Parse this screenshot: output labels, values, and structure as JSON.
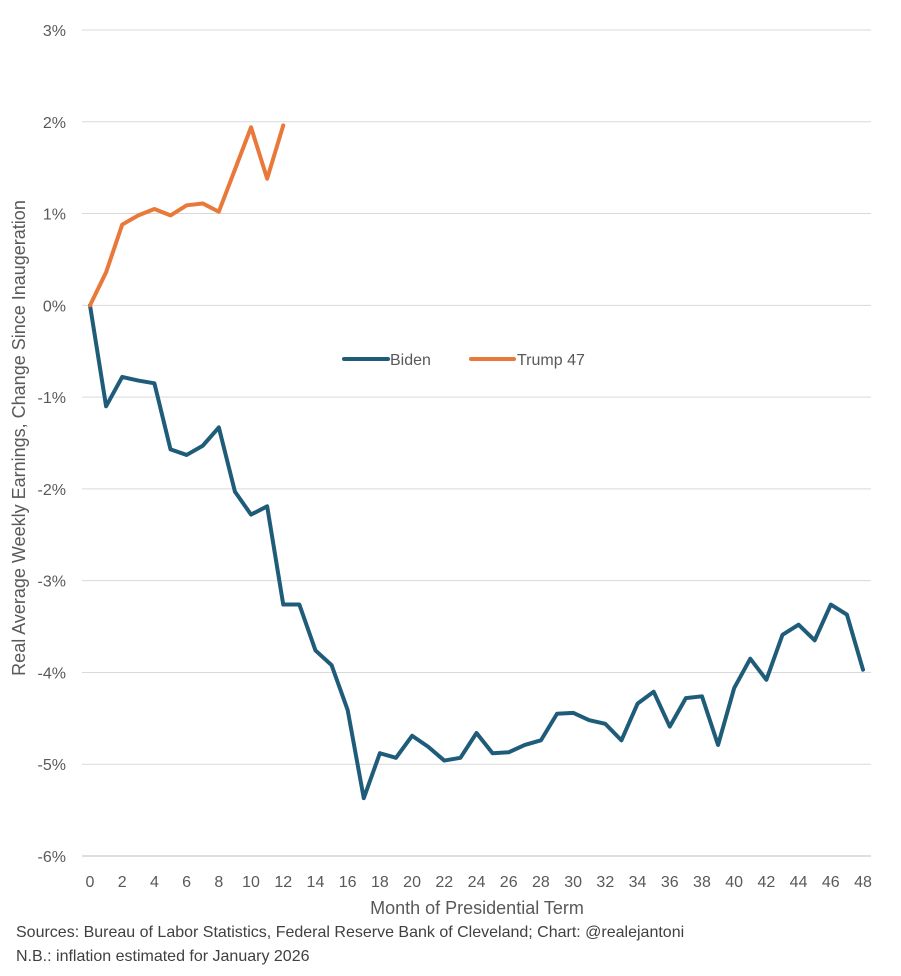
{
  "chart_data": {
    "type": "line",
    "title": "",
    "xlabel": "Month of Presidential Term",
    "ylabel": "Real Average Weekly Earnings, Change Since Inaugeration",
    "xlim": [
      0,
      48
    ],
    "ylim": [
      -6,
      3
    ],
    "x_ticks": [
      0,
      2,
      4,
      6,
      8,
      10,
      12,
      14,
      16,
      18,
      20,
      22,
      24,
      26,
      28,
      30,
      32,
      34,
      36,
      38,
      40,
      42,
      44,
      46,
      48
    ],
    "y_ticks": [
      3,
      2,
      1,
      0,
      -1,
      -2,
      -3,
      -4,
      -5,
      -6
    ],
    "y_tick_labels": [
      "3%",
      "2%",
      "1%",
      "0%",
      "-1%",
      "-2%",
      "-3%",
      "-4%",
      "-5%",
      "-6%"
    ],
    "grid": "horizontal",
    "legend": "center",
    "series": [
      {
        "name": "Biden",
        "color": "#1F5C7A",
        "x": [
          0,
          1,
          2,
          3,
          4,
          5,
          6,
          7,
          8,
          9,
          10,
          11,
          12,
          13,
          14,
          15,
          16,
          17,
          18,
          19,
          20,
          21,
          22,
          23,
          24,
          25,
          26,
          27,
          28,
          29,
          30,
          31,
          32,
          33,
          34,
          35,
          36,
          37,
          38,
          39,
          40,
          41,
          42,
          43,
          44,
          45,
          46,
          47,
          48
        ],
        "values": [
          0,
          -1.1,
          -0.78,
          -0.82,
          -0.85,
          -1.57,
          -1.63,
          -1.53,
          -1.33,
          -2.03,
          -2.28,
          -2.19,
          -3.26,
          -3.26,
          -3.76,
          -3.92,
          -4.41,
          -5.37,
          -4.88,
          -4.93,
          -4.69,
          -4.81,
          -4.96,
          -4.93,
          -4.66,
          -4.88,
          -4.87,
          -4.79,
          -4.74,
          -4.45,
          -4.44,
          -4.52,
          -4.56,
          -4.74,
          -4.34,
          -4.21,
          -4.59,
          -4.28,
          -4.26,
          -4.79,
          -4.17,
          -3.85,
          -4.08,
          -3.59,
          -3.48,
          -3.65,
          -3.26,
          -3.37,
          -3.97
        ]
      },
      {
        "name": "Trump 47",
        "color": "#E8793A",
        "x": [
          0,
          1,
          2,
          3,
          4,
          5,
          6,
          7,
          8,
          9,
          10,
          11,
          12
        ],
        "values": [
          0,
          0.36,
          0.88,
          0.98,
          1.05,
          0.98,
          1.09,
          1.11,
          1.02,
          1.48,
          1.94,
          1.38,
          1.96
        ]
      }
    ]
  },
  "notes": {
    "source": "Sources: Bureau of Labor Statistics, Federal Reserve Bank of Cleveland; Chart: @realejantoni",
    "nb": "N.B.: inflation estimated for January 2026"
  }
}
